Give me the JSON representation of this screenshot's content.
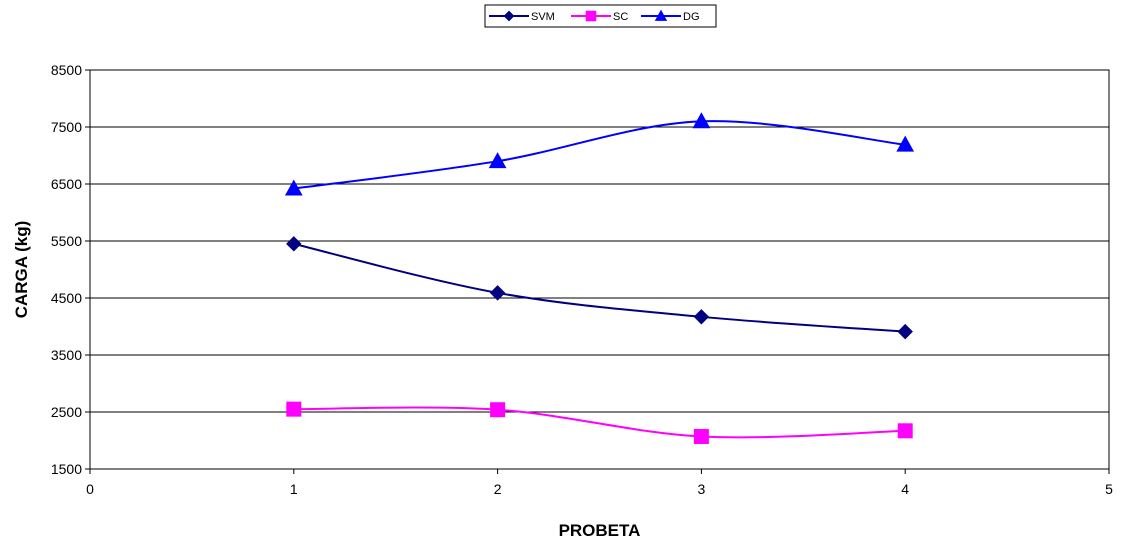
{
  "chart_data": {
    "type": "line",
    "title": "",
    "xlabel": "PROBETA",
    "ylabel": "CARGA (kg)",
    "xlim": [
      0,
      5
    ],
    "ylim": [
      1500,
      8500
    ],
    "xticks": [
      "0",
      "1",
      "2",
      "3",
      "4",
      "5"
    ],
    "yticks": [
      "1500",
      "2500",
      "3500",
      "4500",
      "5500",
      "6500",
      "7500",
      "8500"
    ],
    "grid": "horizontal",
    "legend_position": "top-center",
    "smooth": true,
    "x": [
      1,
      2,
      3,
      4
    ],
    "series": [
      {
        "name": "SVM",
        "values": [
          5450,
          4590,
          4170,
          3910
        ],
        "color": "#000080",
        "marker": "diamond"
      },
      {
        "name": "SC",
        "values": [
          2550,
          2540,
          2070,
          2170
        ],
        "color": "#FF00FF",
        "marker": "square"
      },
      {
        "name": "DG",
        "values": [
          6420,
          6900,
          7600,
          7190
        ],
        "color": "#0000FF",
        "marker": "triangle"
      }
    ]
  }
}
